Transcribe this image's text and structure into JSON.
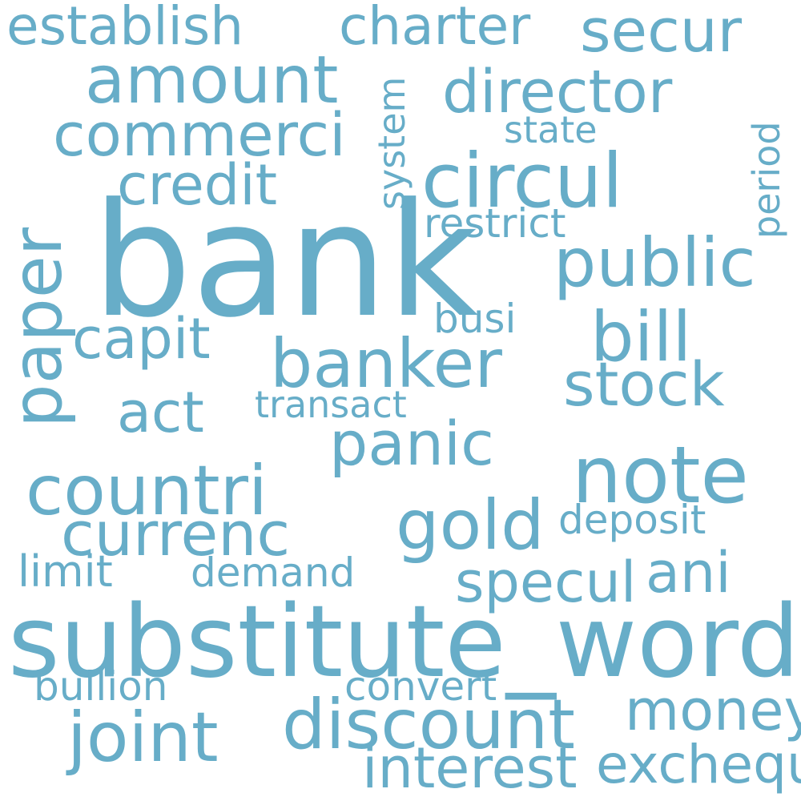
{
  "colors": {
    "word": "#67adc8",
    "background": "#ffffff"
  },
  "words": {
    "bank": "bank",
    "substitute_word": "substitute_word",
    "note": "note",
    "circul": "circul",
    "banker": "banker",
    "countri": "countri",
    "paper": "paper",
    "public": "public",
    "director": "director",
    "commerci": "commerci",
    "amount": "amount",
    "gold": "gold",
    "discount": "discount",
    "joint": "joint",
    "secur": "secur",
    "charter": "charter",
    "establish": "establish",
    "currenc": "currenc",
    "stock": "stock",
    "bill": "bill",
    "panic": "panic",
    "money": "money",
    "credit": "credit",
    "capit": "capit",
    "act": "act",
    "ani": "ani",
    "specul": "specul",
    "interest": "interest",
    "exchequ": "exchequ",
    "restrict": "restrict",
    "state": "state",
    "busi": "busi",
    "transact": "transact",
    "deposit": "deposit",
    "limit": "limit",
    "demand": "demand",
    "bullion": "bullion",
    "convert": "convert",
    "system": "system",
    "period": "period"
  }
}
